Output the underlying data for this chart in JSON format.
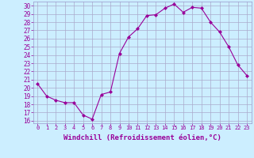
{
  "x": [
    0,
    1,
    2,
    3,
    4,
    5,
    6,
    7,
    8,
    9,
    10,
    11,
    12,
    13,
    14,
    15,
    16,
    17,
    18,
    19,
    20,
    21,
    22,
    23
  ],
  "y": [
    20.5,
    19.0,
    18.5,
    18.2,
    18.2,
    16.7,
    16.2,
    19.2,
    19.5,
    24.2,
    26.2,
    27.2,
    28.8,
    28.9,
    29.7,
    30.2,
    29.2,
    29.8,
    29.7,
    28.0,
    26.8,
    25.0,
    22.8,
    21.5
  ],
  "line_color": "#990099",
  "marker": "D",
  "marker_size": 2.0,
  "bg_color": "#cceeff",
  "grid_color": "#aaaacc",
  "xlabel": "Windchill (Refroidissement éolien,°C)",
  "xlabel_color": "#990099",
  "ylabel_ticks": [
    16,
    17,
    18,
    19,
    20,
    21,
    22,
    23,
    24,
    25,
    26,
    27,
    28,
    29,
    30
  ],
  "ylim": [
    15.7,
    30.5
  ],
  "xlim": [
    -0.5,
    23.5
  ],
  "tick_color": "#990099",
  "xlabel_fontsize": 6.5,
  "ytick_fontsize": 5.5,
  "xtick_fontsize": 5.0,
  "spine_color": "#9999cc"
}
